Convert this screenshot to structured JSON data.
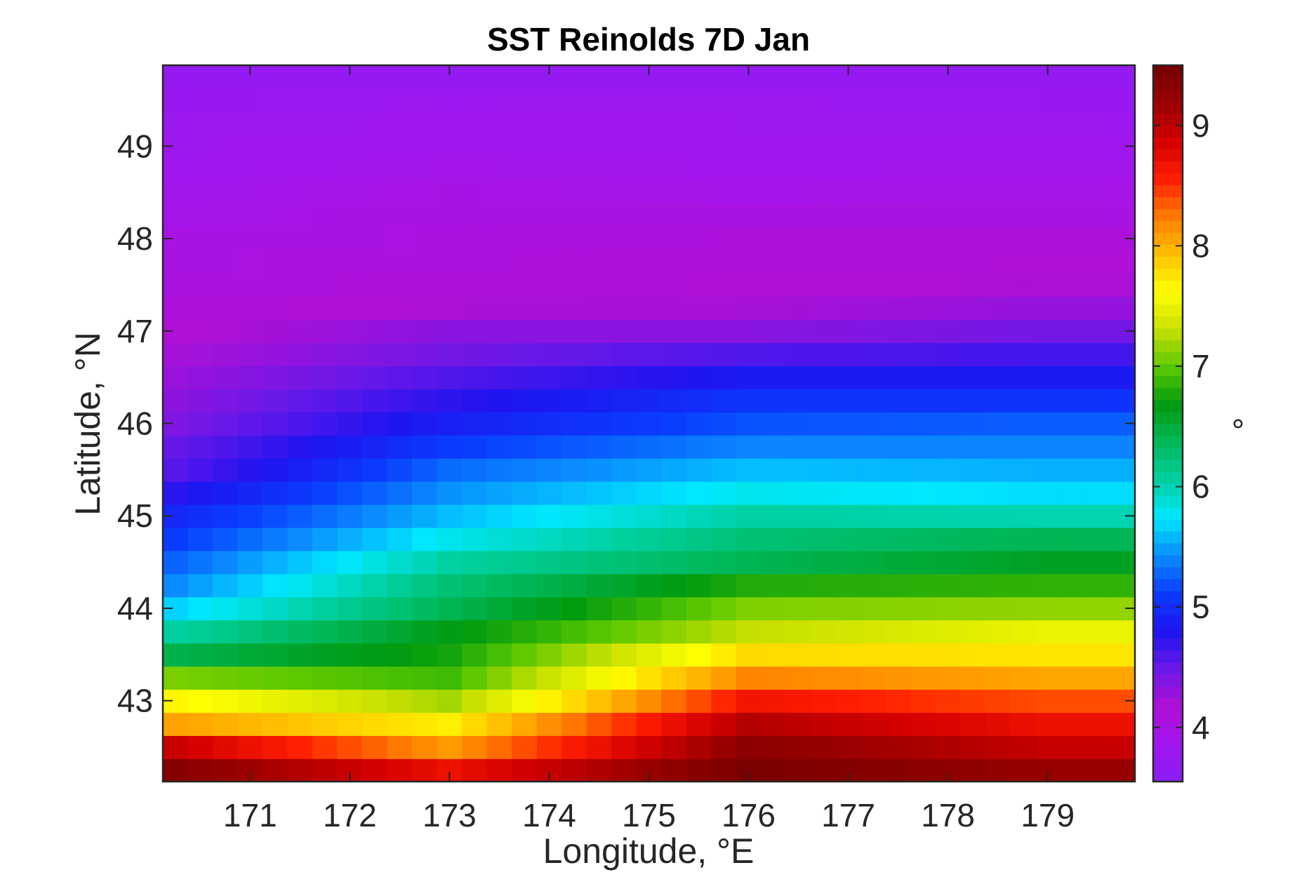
{
  "chart_data": {
    "type": "heatmap",
    "title": "SST Reinolds 7D Jan",
    "xlabel": "Longitude, °E",
    "ylabel": "Latitude, °N",
    "colorbar_label": "°",
    "xlim": [
      170.125,
      179.875
    ],
    "ylim": [
      42.125,
      49.875
    ],
    "x_ticks": [
      171,
      172,
      173,
      174,
      175,
      176,
      177,
      178,
      179
    ],
    "y_ticks": [
      43,
      44,
      45,
      46,
      47,
      48,
      49
    ],
    "clim": [
      3.55,
      9.5
    ],
    "colorbar_ticks": [
      4,
      5,
      6,
      7,
      8,
      9
    ],
    "colormap": "purple-blue-cyan-green-yellow-red-darkred",
    "colormap_stops": [
      "#8a1df5",
      "#a116ef",
      "#b010d6",
      "#6a18e8",
      "#1f14f0",
      "#0a3cff",
      "#0a8cff",
      "#00e8ff",
      "#00d0a0",
      "#00b85a",
      "#009a10",
      "#5ac800",
      "#c8e000",
      "#ffff00",
      "#ffbf00",
      "#ff7a00",
      "#ff1e00",
      "#d40000",
      "#9a0000",
      "#740000"
    ],
    "grid": false,
    "grid_resolution_deg": 0.25,
    "x_centers_range": [
      170.25,
      179.75
    ],
    "y_centers_range": [
      42.25,
      49.75
    ],
    "value_profiles": {
      "lat": [
        42.25,
        42.5,
        42.75,
        43.0,
        43.25,
        43.5,
        43.75,
        44.0,
        44.25,
        44.5,
        44.75,
        45.0,
        45.25,
        45.5,
        45.75,
        46.0,
        46.25,
        46.5,
        46.75,
        47.0,
        47.25,
        47.5,
        48.0,
        48.5,
        49.0,
        49.5,
        49.75
      ],
      "west_lon170": [
        9.4,
        9.0,
        8.1,
        7.7,
        7.1,
        6.4,
        6.0,
        5.6,
        5.35,
        5.2,
        5.05,
        4.9,
        4.7,
        4.5,
        4.45,
        4.35,
        4.3,
        4.25,
        4.2,
        4.15,
        4.1,
        4.05,
        4.0,
        3.9,
        3.8,
        3.75,
        3.7
      ],
      "mid_lon173": [
        8.7,
        8.1,
        7.7,
        7.2,
        6.9,
        6.75,
        6.65,
        6.4,
        6.25,
        6.05,
        5.8,
        5.6,
        5.45,
        5.3,
        5.1,
        4.9,
        4.75,
        4.6,
        4.45,
        4.35,
        4.2,
        4.12,
        4.05,
        4.0,
        3.88,
        3.78,
        3.72
      ],
      "east_lon176": [
        9.45,
        9.3,
        9.05,
        8.65,
        8.2,
        7.8,
        7.3,
        7.1,
        6.8,
        6.4,
        6.25,
        6.05,
        5.8,
        5.6,
        5.4,
        5.2,
        5.05,
        4.85,
        4.6,
        4.35,
        4.22,
        4.15,
        4.1,
        3.95,
        3.85,
        3.78,
        3.72
      ],
      "far_east_lon179": [
        9.2,
        8.95,
        8.7,
        8.4,
        8.05,
        7.75,
        7.5,
        7.15,
        6.85,
        6.6,
        6.4,
        6.0,
        5.7,
        5.55,
        5.4,
        5.25,
        5.05,
        4.85,
        4.65,
        4.45,
        4.3,
        4.2,
        4.1,
        3.98,
        3.85,
        3.76,
        3.7
      ]
    }
  }
}
